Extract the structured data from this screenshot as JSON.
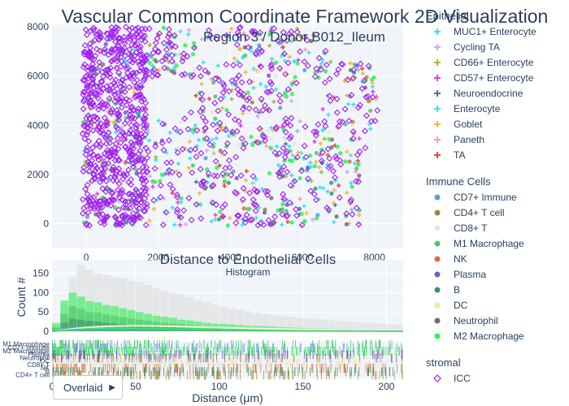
{
  "chart_data": [
    {
      "type": "scatter",
      "title": "Vascular Common Coordinate Framework 2D Visualization",
      "subtitle": "Region 3 / Donor B012_Ileum",
      "x_ticks": [
        0,
        2000,
        4000,
        6000,
        8000
      ],
      "y_ticks": [
        0,
        2000,
        4000,
        6000,
        8000
      ],
      "xlim": [
        -950,
        8800
      ],
      "ylim": [
        -1000,
        8100
      ],
      "legend_placement": "right",
      "legend_groups": [
        {
          "name": "Epithelial",
          "marker": "cross",
          "items": [
            {
              "name": "MUC1+ Enterocyte",
              "color": "#2ee6e6"
            },
            {
              "name": "Cycling TA",
              "color": "#d8a6f2"
            },
            {
              "name": "CD66+ Enterocyte",
              "color": "#a7b83d"
            },
            {
              "name": "CD57+ Enterocyte",
              "color": "#e83fe0"
            },
            {
              "name": "Neuroendocrine",
              "color": "#4f6ea8"
            },
            {
              "name": "Enterocyte",
              "color": "#45dcf0"
            },
            {
              "name": "Goblet",
              "color": "#f5b642"
            },
            {
              "name": "Paneth",
              "color": "#f5a3a3"
            },
            {
              "name": "TA",
              "color": "#e8473f"
            }
          ]
        },
        {
          "name": "Immune Cells",
          "marker": "circle",
          "items": [
            {
              "name": "CD7+ Immune",
              "color": "#5b9bd5"
            },
            {
              "name": "CD4+ T cell",
              "color": "#9c8640"
            },
            {
              "name": "CD8+ T",
              "color": "#e6e6e6"
            },
            {
              "name": "M1 Macrophage",
              "color": "#4cc46a"
            },
            {
              "name": "NK",
              "color": "#d2733d"
            },
            {
              "name": "Plasma",
              "color": "#7e55c0"
            },
            {
              "name": "B",
              "color": "#3f8f6b"
            },
            {
              "name": "DC",
              "color": "#f6e6a0"
            },
            {
              "name": "Neutrophil",
              "color": "#6e6e6e"
            },
            {
              "name": "M2 Macrophage",
              "color": "#33ee55"
            }
          ]
        },
        {
          "name": "stromal",
          "marker": "diamond-open",
          "items": [
            {
              "name": "ICC",
              "color": "#a020f0"
            }
          ]
        }
      ]
    },
    {
      "type": "histogram",
      "title": "Distance to Endothelial Cells",
      "subtitle": "Histogram",
      "xlabel": "Distance (μm)",
      "ylabel": "Count #",
      "x_ticks": [
        0,
        50,
        100,
        150,
        200
      ],
      "y_ticks": [
        0,
        50,
        100,
        150
      ],
      "xlim": [
        0,
        210
      ],
      "ylim": [
        0,
        185
      ],
      "bin_width": 5,
      "barmode_button": "Overlaid",
      "series": [
        {
          "name": "CD8+ T",
          "color": "#e3e3e3",
          "values": [
            25,
            70,
            140,
            172,
            160,
            150,
            145,
            140,
            138,
            130,
            128,
            120,
            112,
            105,
            100,
            95,
            88,
            80,
            75,
            70,
            65,
            60,
            56,
            52,
            48,
            45,
            42,
            40,
            38,
            35,
            33,
            32,
            30,
            28,
            27,
            25,
            24,
            22,
            21,
            20,
            18,
            17
          ]
        },
        {
          "name": "M2 Macrophage",
          "color": "#33ee55",
          "values": [
            20,
            80,
            100,
            90,
            78,
            75,
            68,
            65,
            60,
            55,
            50,
            45,
            40,
            38,
            35,
            30,
            28,
            25,
            22,
            20,
            19,
            18,
            16,
            15,
            14,
            13,
            12,
            11,
            10,
            9,
            8,
            7,
            7,
            6,
            6,
            5,
            5,
            4,
            4,
            3,
            3,
            3
          ]
        },
        {
          "name": "M1 Macrophage",
          "color": "#4cc46a",
          "values": [
            10,
            45,
            65,
            58,
            50,
            48,
            44,
            40,
            36,
            33,
            30,
            27,
            24,
            22,
            20,
            18,
            16,
            14,
            13,
            12,
            10,
            9,
            8,
            8,
            7,
            6,
            6,
            5,
            5,
            4,
            4,
            3,
            3,
            3,
            2,
            2,
            2,
            2,
            1,
            1,
            1,
            1
          ]
        },
        {
          "name": "B",
          "color": "#3f8f6b",
          "values": [
            5,
            22,
            32,
            30,
            27,
            25,
            22,
            20,
            18,
            16,
            15,
            13,
            12,
            11,
            10,
            9,
            8,
            7,
            6,
            6,
            5,
            5,
            4,
            4,
            3,
            3,
            3,
            2,
            2,
            2,
            2,
            1,
            1,
            1,
            1,
            1,
            1,
            1,
            1,
            1,
            0,
            0
          ]
        },
        {
          "name": "CD7+ Immune",
          "color": "#5b9bd5",
          "values": [
            3,
            10,
            14,
            13,
            12,
            11,
            10,
            9,
            8,
            7,
            7,
            6,
            5,
            5,
            4,
            4,
            3,
            3,
            3,
            2,
            2,
            2,
            2,
            1,
            1,
            1,
            1,
            1,
            1,
            1,
            0,
            0,
            0,
            0,
            0,
            0,
            0,
            0,
            0,
            0,
            0,
            0
          ]
        }
      ],
      "rug_labels": [
        "M1 Macrophage",
        "CD7+ Immune",
        "M2 Macrophage",
        "Plasma",
        "Neutrophil",
        "DC",
        "CD8+ T",
        "NK",
        "B",
        "CD4+ T cell"
      ]
    }
  ]
}
